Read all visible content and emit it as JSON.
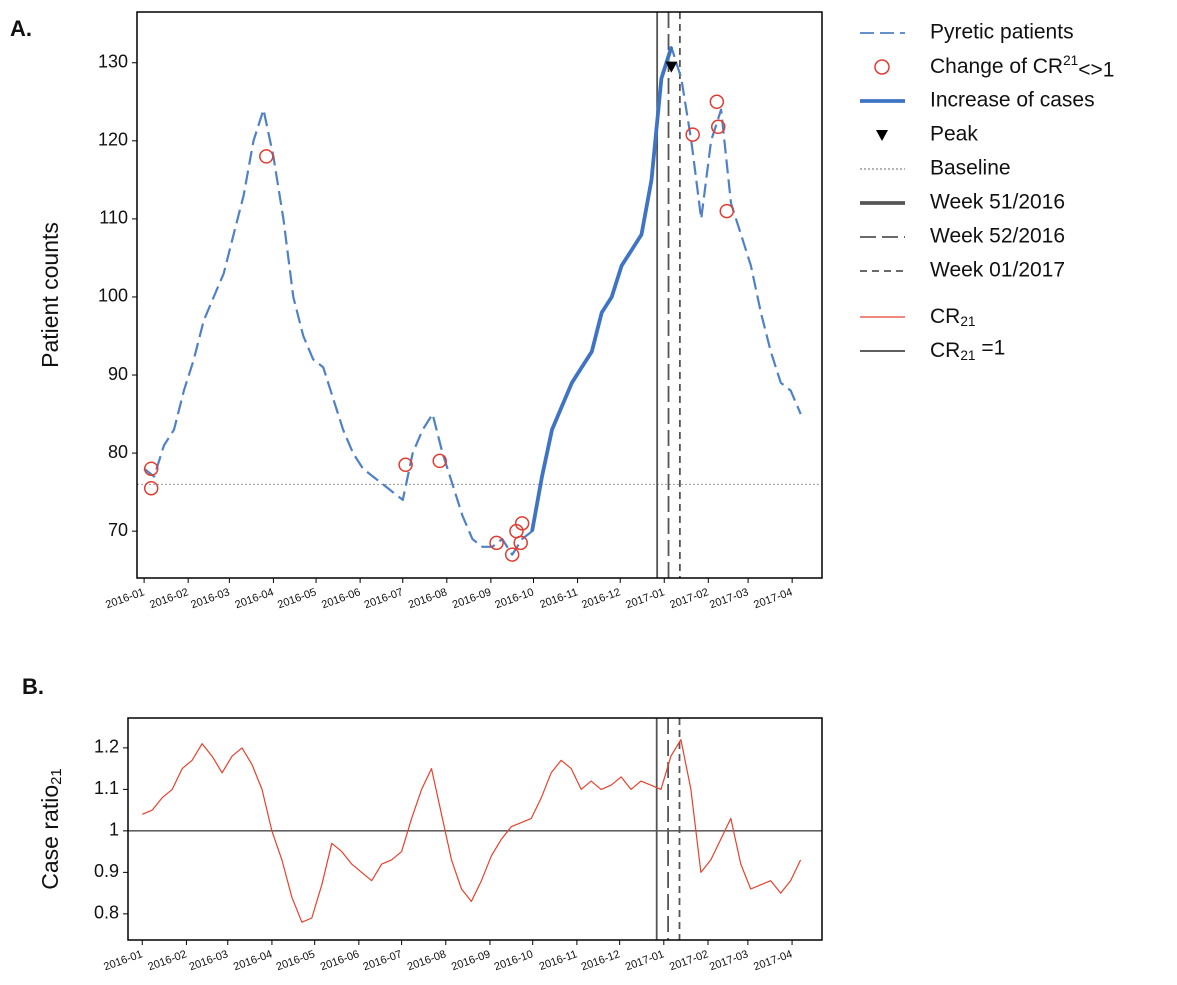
{
  "chart_data": [
    {
      "type": "line",
      "panel_label": "A.",
      "y_label": "Patient counts",
      "xlim": [
        "2015-12-27",
        "2017-04-22"
      ],
      "ylim": [
        64,
        136.5
      ],
      "yticks": [
        70,
        80,
        90,
        100,
        110,
        120,
        130
      ],
      "xticks": [
        {
          "value": "2016-01-01",
          "label": "2016-01"
        },
        {
          "value": "2016-02-01",
          "label": "2016-02"
        },
        {
          "value": "2016-03-01",
          "label": "2016-03"
        },
        {
          "value": "2016-04-01",
          "label": "2016-04"
        },
        {
          "value": "2016-05-01",
          "label": "2016-05"
        },
        {
          "value": "2016-06-01",
          "label": "2016-06"
        },
        {
          "value": "2016-07-01",
          "label": "2016-07"
        },
        {
          "value": "2016-08-01",
          "label": "2016-08"
        },
        {
          "value": "2016-09-01",
          "label": "2016-09"
        },
        {
          "value": "2016-10-01",
          "label": "2016-10"
        },
        {
          "value": "2016-11-01",
          "label": "2016-11"
        },
        {
          "value": "2016-12-01",
          "label": "2016-12"
        },
        {
          "value": "2017-01-01",
          "label": "2017-01"
        },
        {
          "value": "2017-02-01",
          "label": "2017-02"
        },
        {
          "value": "2017-03-01",
          "label": "2017-03"
        },
        {
          "value": "2017-04-01",
          "label": "2017-04"
        }
      ],
      "x": [
        "2016-01-01",
        "2016-01-08",
        "2016-01-15",
        "2016-01-22",
        "2016-01-29",
        "2016-02-05",
        "2016-02-12",
        "2016-02-19",
        "2016-02-26",
        "2016-03-04",
        "2016-03-11",
        "2016-03-18",
        "2016-03-25",
        "2016-04-01",
        "2016-04-08",
        "2016-04-15",
        "2016-04-22",
        "2016-04-29",
        "2016-05-06",
        "2016-05-13",
        "2016-05-20",
        "2016-05-27",
        "2016-06-03",
        "2016-06-10",
        "2016-06-17",
        "2016-06-24",
        "2016-07-01",
        "2016-07-08",
        "2016-07-15",
        "2016-07-22",
        "2016-07-29",
        "2016-08-05",
        "2016-08-12",
        "2016-08-19",
        "2016-08-26",
        "2016-09-02",
        "2016-09-09",
        "2016-09-16",
        "2016-09-23",
        "2016-09-30",
        "2016-10-07",
        "2016-10-14",
        "2016-10-21",
        "2016-10-28",
        "2016-11-04",
        "2016-11-11",
        "2016-11-18",
        "2016-11-25",
        "2016-12-02",
        "2016-12-09",
        "2016-12-16",
        "2016-12-23",
        "2016-12-30",
        "2017-01-06",
        "2017-01-13",
        "2017-01-20",
        "2017-01-27",
        "2017-02-03",
        "2017-02-10",
        "2017-02-17",
        "2017-02-24",
        "2017-03-03",
        "2017-03-10",
        "2017-03-17",
        "2017-03-24",
        "2017-03-31",
        "2017-04-07"
      ],
      "series": [
        {
          "name": "Pyretic patients",
          "color": "#4f81c7",
          "style": "dashed",
          "values": [
            78,
            77,
            81,
            83,
            88,
            92,
            97,
            100,
            103,
            108,
            113,
            120,
            124,
            118,
            110,
            100,
            95,
            92,
            91,
            87,
            83,
            80,
            78,
            77,
            76,
            75,
            74,
            80,
            83,
            85,
            80,
            76,
            72,
            69,
            68,
            68,
            69,
            67,
            69,
            70,
            77,
            83,
            86,
            89,
            91,
            93,
            98,
            100,
            104,
            106,
            108,
            115,
            128,
            132,
            128,
            120,
            110,
            120,
            124,
            112,
            108,
            104,
            98,
            93,
            89,
            88,
            85
          ]
        },
        {
          "name": "Change of CR21<>1",
          "color": "#e03c31",
          "style": "circle",
          "x": [
            "2016-01-06",
            "2016-01-06",
            "2016-03-27",
            "2016-07-03",
            "2016-07-27",
            "2016-09-05",
            "2016-09-16",
            "2016-09-19",
            "2016-09-22",
            "2016-09-23",
            "2017-01-21",
            "2017-02-07",
            "2017-02-08",
            "2017-02-14"
          ],
          "values": [
            78,
            75.5,
            118,
            78.5,
            79,
            68.5,
            67,
            70,
            68.5,
            71,
            120.8,
            125,
            121.8,
            111
          ]
        },
        {
          "name": "Increase of cases",
          "color": "#3f74c4",
          "style": "solid",
          "values": [
            null,
            null,
            null,
            null,
            null,
            null,
            null,
            null,
            null,
            null,
            null,
            null,
            null,
            null,
            null,
            null,
            null,
            null,
            null,
            null,
            null,
            null,
            null,
            null,
            null,
            null,
            null,
            null,
            null,
            null,
            null,
            null,
            null,
            null,
            null,
            null,
            null,
            null,
            null,
            70,
            77,
            83,
            86,
            89,
            91,
            93,
            98,
            100,
            104,
            106,
            108,
            115,
            128,
            132,
            null,
            null,
            null,
            null,
            null,
            null,
            null,
            null,
            null,
            null,
            null,
            null,
            null
          ]
        },
        {
          "name": "Peak",
          "color": "#000000",
          "style": "triangle",
          "x": [
            "2017-01-06"
          ],
          "values": [
            129.5
          ]
        }
      ],
      "baseline": {
        "name": "Baseline",
        "value": 76,
        "color": "#9a9a9a"
      },
      "vlines": [
        {
          "name": "Week 51/2016",
          "x": "2016-12-27",
          "style": "solid"
        },
        {
          "name": "Week 52/2016",
          "x": "2017-01-04",
          "style": "longdash"
        },
        {
          "name": "Week 01/2017",
          "x": "2017-01-12",
          "style": "dash"
        }
      ]
    },
    {
      "type": "line",
      "panel_label": "B.",
      "y_label": "Case ratio21",
      "xlim": [
        "2015-12-22",
        "2017-04-22"
      ],
      "ylim": [
        0.737,
        1.272
      ],
      "yticks": [
        0.8,
        0.9,
        1,
        1.1,
        1.2
      ],
      "xticks": [
        {
          "value": "2016-01-01",
          "label": "2016-01"
        },
        {
          "value": "2016-02-01",
          "label": "2016-02"
        },
        {
          "value": "2016-03-01",
          "label": "2016-03"
        },
        {
          "value": "2016-04-01",
          "label": "2016-04"
        },
        {
          "value": "2016-05-01",
          "label": "2016-05"
        },
        {
          "value": "2016-06-01",
          "label": "2016-06"
        },
        {
          "value": "2016-07-01",
          "label": "2016-07"
        },
        {
          "value": "2016-08-01",
          "label": "2016-08"
        },
        {
          "value": "2016-09-01",
          "label": "2016-09"
        },
        {
          "value": "2016-10-01",
          "label": "2016-10"
        },
        {
          "value": "2016-11-01",
          "label": "2016-11"
        },
        {
          "value": "2016-12-01",
          "label": "2016-12"
        },
        {
          "value": "2017-01-01",
          "label": "2017-01"
        },
        {
          "value": "2017-02-01",
          "label": "2017-02"
        },
        {
          "value": "2017-03-01",
          "label": "2017-03"
        },
        {
          "value": "2017-04-01",
          "label": "2017-04"
        }
      ],
      "x": [
        "2016-01-01",
        "2016-01-08",
        "2016-01-15",
        "2016-01-22",
        "2016-01-29",
        "2016-02-05",
        "2016-02-12",
        "2016-02-19",
        "2016-02-26",
        "2016-03-04",
        "2016-03-11",
        "2016-03-18",
        "2016-03-25",
        "2016-04-01",
        "2016-04-08",
        "2016-04-15",
        "2016-04-22",
        "2016-04-29",
        "2016-05-06",
        "2016-05-13",
        "2016-05-20",
        "2016-05-27",
        "2016-06-03",
        "2016-06-10",
        "2016-06-17",
        "2016-06-24",
        "2016-07-01",
        "2016-07-08",
        "2016-07-15",
        "2016-07-22",
        "2016-07-29",
        "2016-08-05",
        "2016-08-12",
        "2016-08-19",
        "2016-08-26",
        "2016-09-02",
        "2016-09-09",
        "2016-09-16",
        "2016-09-23",
        "2016-09-30",
        "2016-10-07",
        "2016-10-14",
        "2016-10-21",
        "2016-10-28",
        "2016-11-04",
        "2016-11-11",
        "2016-11-18",
        "2016-11-25",
        "2016-12-02",
        "2016-12-09",
        "2016-12-16",
        "2016-12-23",
        "2016-12-30",
        "2017-01-06",
        "2017-01-13",
        "2017-01-20",
        "2017-01-27",
        "2017-02-03",
        "2017-02-10",
        "2017-02-17",
        "2017-02-24",
        "2017-03-03",
        "2017-03-10",
        "2017-03-17",
        "2017-03-24",
        "2017-03-31",
        "2017-04-07"
      ],
      "series": [
        {
          "name": "CR21",
          "color": "#e8412c",
          "style": "thin",
          "values": [
            1.04,
            1.05,
            1.08,
            1.1,
            1.15,
            1.17,
            1.21,
            1.18,
            1.14,
            1.18,
            1.2,
            1.16,
            1.1,
            1.0,
            0.93,
            0.84,
            0.78,
            0.79,
            0.87,
            0.97,
            0.95,
            0.92,
            0.9,
            0.88,
            0.92,
            0.93,
            0.95,
            1.03,
            1.1,
            1.15,
            1.04,
            0.93,
            0.86,
            0.83,
            0.88,
            0.94,
            0.98,
            1.01,
            1.02,
            1.03,
            1.08,
            1.14,
            1.17,
            1.15,
            1.1,
            1.12,
            1.1,
            1.11,
            1.13,
            1.1,
            1.12,
            1.11,
            1.1,
            1.18,
            1.22,
            1.1,
            0.9,
            0.93,
            0.98,
            1.03,
            0.92,
            0.86,
            0.87,
            0.88,
            0.85,
            0.88,
            0.93
          ]
        }
      ],
      "hline": {
        "name": "CR21 =1",
        "value": 1,
        "color": "#000000"
      },
      "vlines": [
        {
          "x": "2016-12-27",
          "style": "solid"
        },
        {
          "x": "2017-01-04",
          "style": "longdash"
        },
        {
          "x": "2017-01-12",
          "style": "dash"
        }
      ]
    }
  ]
}
